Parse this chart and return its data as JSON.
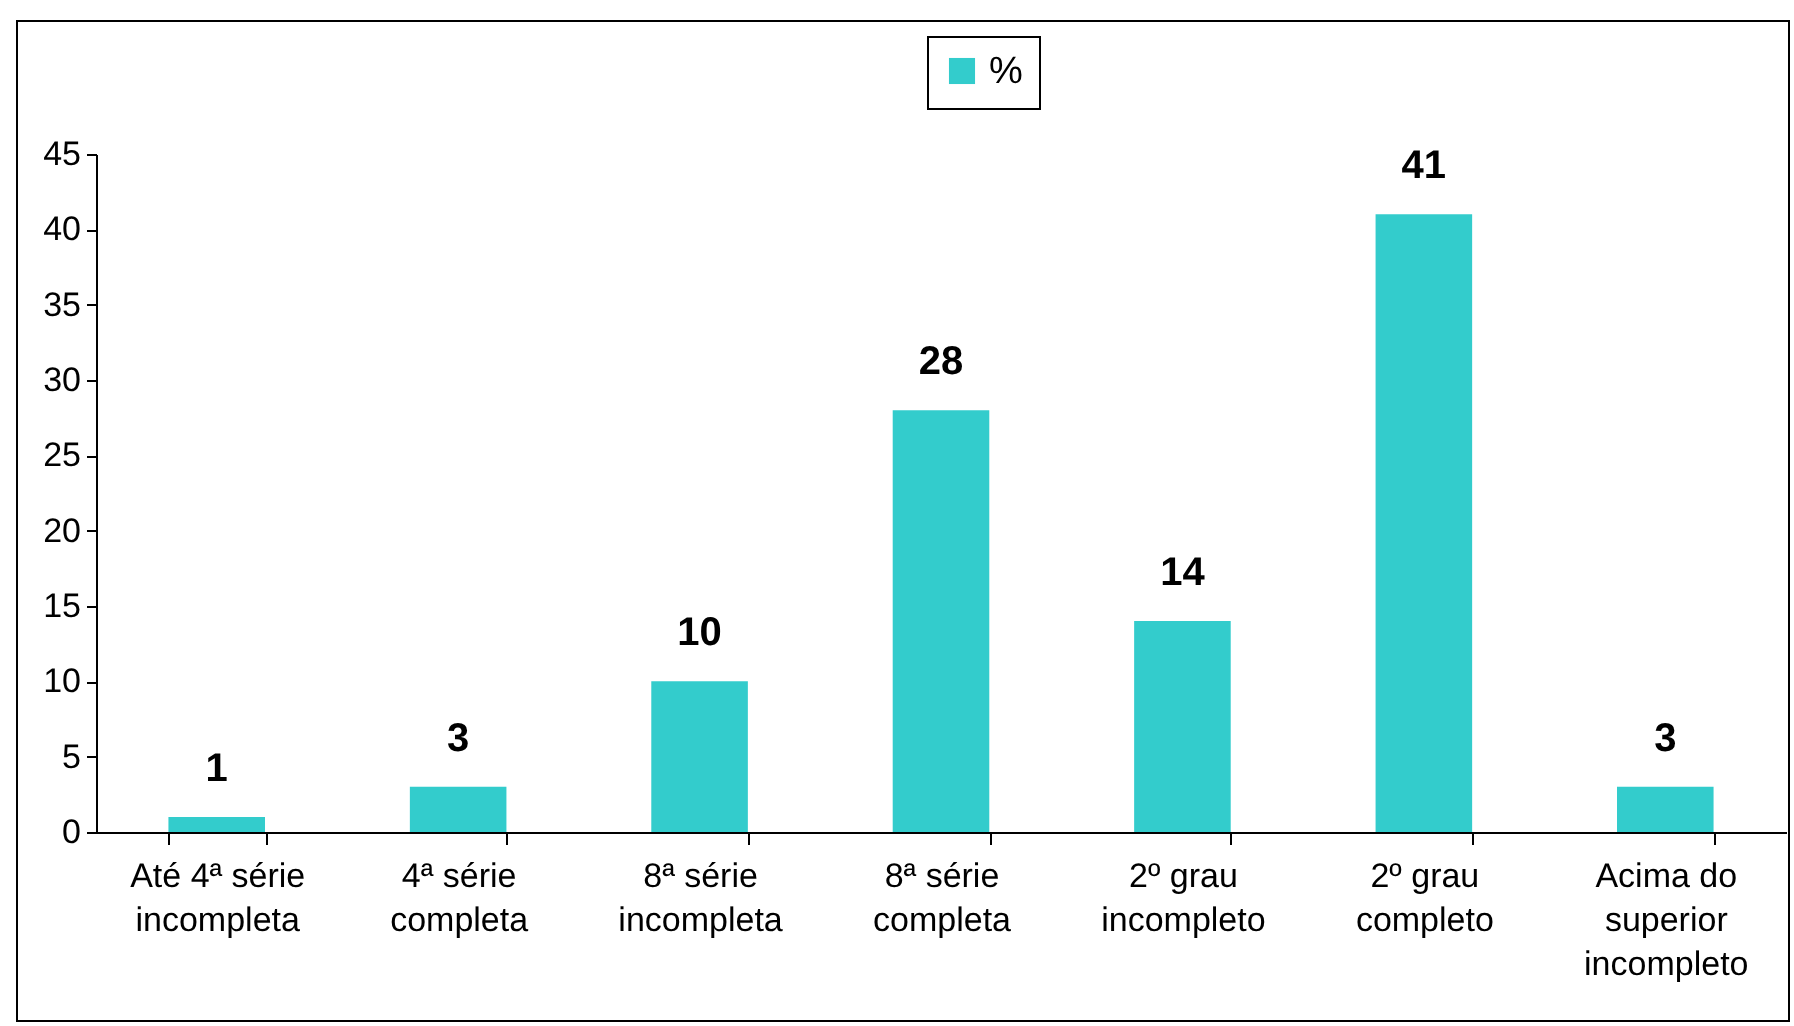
{
  "chart_data": {
    "type": "bar",
    "categories": [
      "Até 4ª série incompleta",
      "4ª série completa",
      "8ª série incompleta",
      "8ª série completa",
      "2º grau incompleto",
      "2º grau completo",
      "Acima do superior incompleto"
    ],
    "series": [
      {
        "name": "%",
        "color": "#33cccc",
        "values": [
          1,
          3,
          10,
          28,
          14,
          41,
          3
        ]
      }
    ],
    "ylim": [
      0,
      45
    ],
    "yticks": [
      0,
      5,
      10,
      15,
      20,
      25,
      30,
      35,
      40,
      45
    ],
    "data_labels": true,
    "legend": "top"
  }
}
